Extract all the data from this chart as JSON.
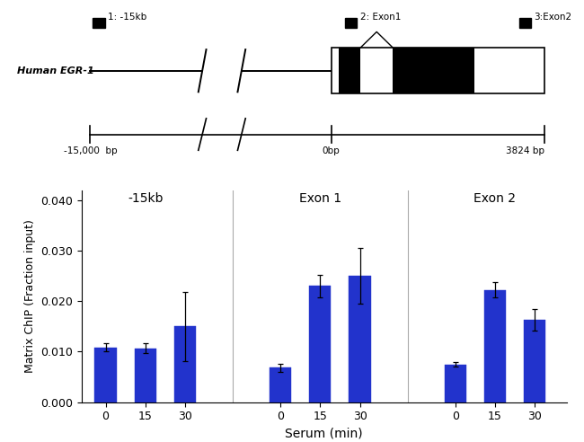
{
  "bar_values": {
    "neg15kb": [
      0.0108,
      0.0107,
      0.015
    ],
    "exon1": [
      0.0068,
      0.023,
      0.025
    ],
    "exon2": [
      0.0075,
      0.0222,
      0.0163
    ]
  },
  "bar_errors": {
    "neg15kb": [
      0.0008,
      0.001,
      0.0068
    ],
    "exon1": [
      0.0008,
      0.0022,
      0.0055
    ],
    "exon2": [
      0.0005,
      0.0015,
      0.0022
    ]
  },
  "bar_color": "#2233CC",
  "x_labels": [
    "0",
    "15",
    "30"
  ],
  "group_titles": [
    "-15kb",
    "Exon 1",
    "Exon 2"
  ],
  "xlabel": "Serum (min)",
  "ylabel": "Matrix ChIP (Fraction input)",
  "ylim": [
    0,
    0.042
  ],
  "yticks": [
    0.0,
    0.01,
    0.02,
    0.03,
    0.04
  ],
  "background_color": "#ffffff",
  "gene_label": "Human EGR-1",
  "chip_labels": [
    "1: -15kb",
    "2: Exon1",
    "3:Exon2"
  ],
  "scale_labels": [
    "-15,000  bp",
    "0bp",
    "3824 bp"
  ]
}
